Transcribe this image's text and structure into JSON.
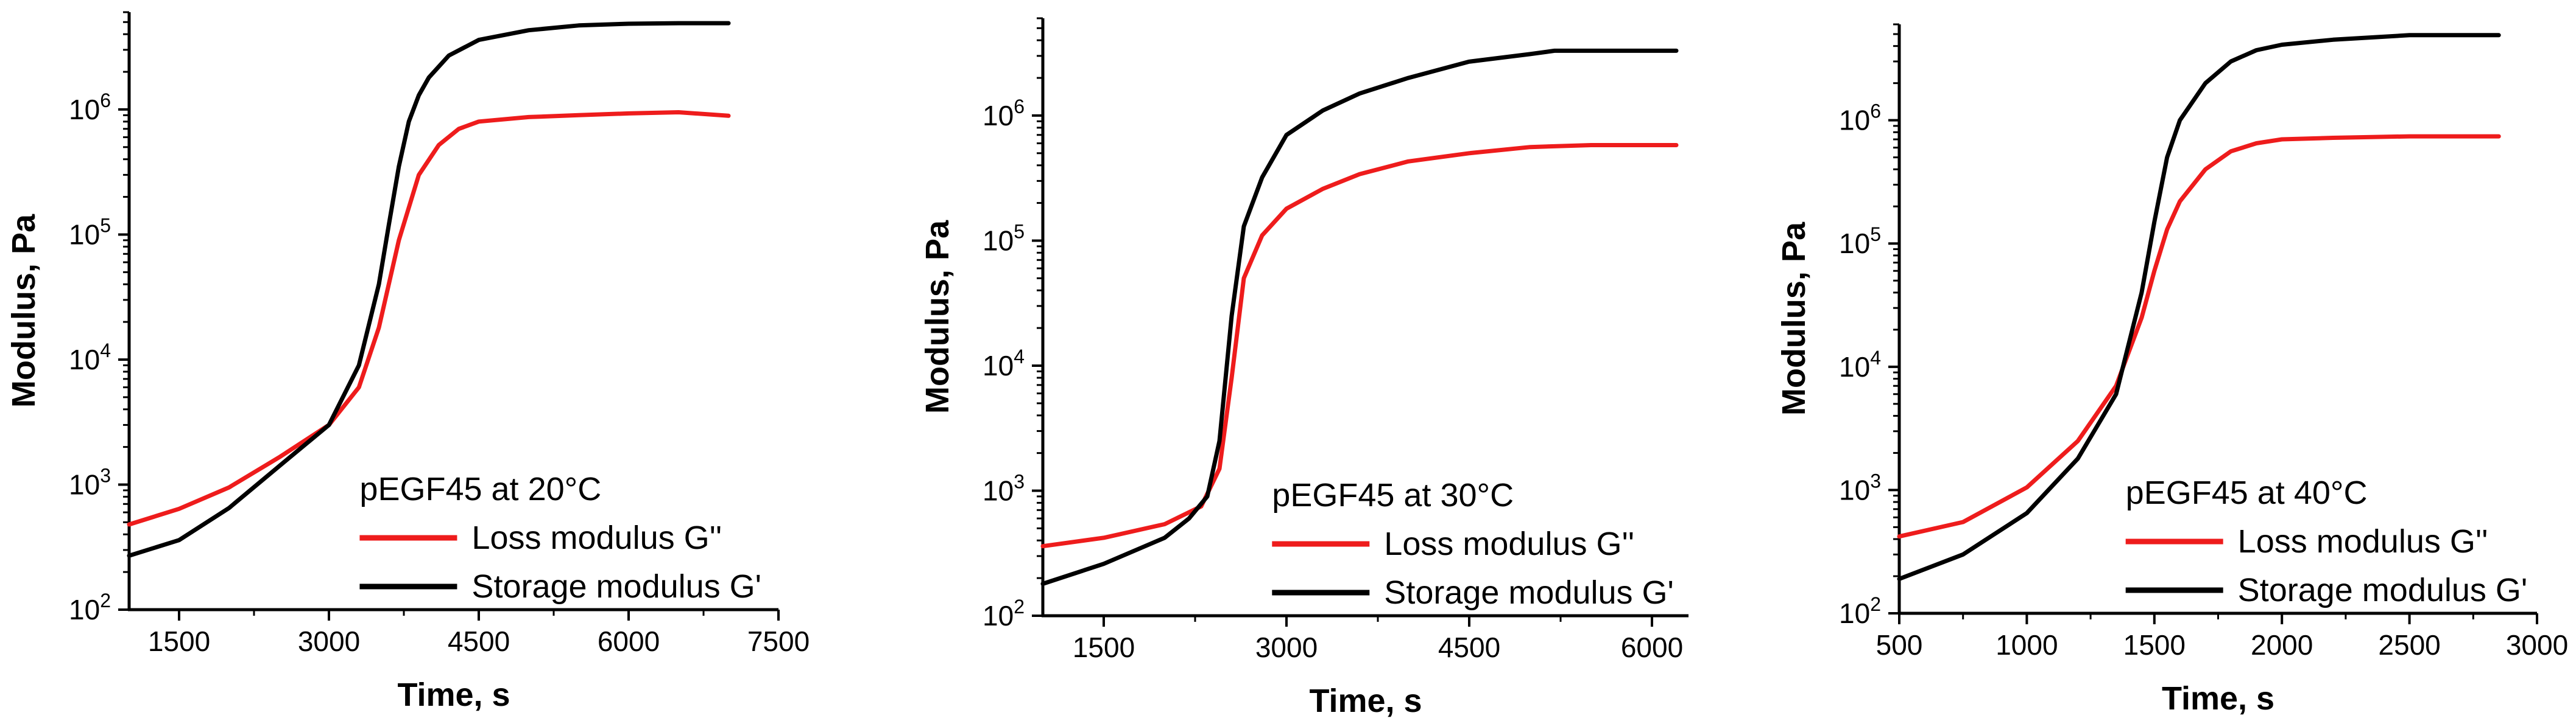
{
  "chart_data": [
    {
      "type": "line",
      "xlabel": "Time, s",
      "ylabel": "Modulus, Pa",
      "xlim": [
        1000,
        7500
      ],
      "ylim": [
        100,
        6000000
      ],
      "yscale": "log",
      "xticks": [
        1500,
        3000,
        4500,
        6000,
        7500
      ],
      "xtick_labels": [
        "1500",
        "3000",
        "4500",
        "6000",
        "7500"
      ],
      "yticks": [
        100,
        1000,
        10000,
        100000,
        1000000
      ],
      "ytick_bases": [
        "10",
        "10",
        "10",
        "10",
        "10"
      ],
      "ytick_exps": [
        "2",
        "3",
        "4",
        "5",
        "6"
      ],
      "legend_title": "pEGF45 at 20°C",
      "legend_placement": "bottom-right",
      "series": [
        {
          "name": "Loss modulus G''",
          "color": "#ee1c1c",
          "x": [
            1000,
            1500,
            2000,
            2500,
            3000,
            3300,
            3500,
            3700,
            3900,
            4100,
            4300,
            4500,
            5000,
            5500,
            6000,
            6500,
            7000
          ],
          "y": [
            480,
            640,
            950,
            1650,
            3000,
            6000,
            18000,
            90000,
            300000,
            520000,
            700000,
            800000,
            870000,
            900000,
            930000,
            950000,
            890000
          ]
        },
        {
          "name": "Storage modulus G'",
          "color": "#000000",
          "x": [
            1000,
            1500,
            2000,
            2500,
            3000,
            3300,
            3500,
            3600,
            3700,
            3800,
            3900,
            4000,
            4200,
            4500,
            5000,
            5500,
            6000,
            6500,
            7000
          ],
          "y": [
            270,
            360,
            650,
            1400,
            3000,
            9000,
            40000,
            120000,
            350000,
            800000,
            1300000,
            1800000,
            2700000,
            3600000,
            4300000,
            4700000,
            4850000,
            4900000,
            4900000
          ]
        }
      ]
    },
    {
      "type": "line",
      "xlabel": "Time, s",
      "ylabel": "Modulus, Pa",
      "xlim": [
        1000,
        6300
      ],
      "ylim": [
        100,
        6000000
      ],
      "yscale": "log",
      "xticks": [
        1500,
        3000,
        4500,
        6000
      ],
      "xtick_labels": [
        "1500",
        "3000",
        "4500",
        "6000"
      ],
      "yticks": [
        100,
        1000,
        10000,
        100000,
        1000000
      ],
      "ytick_bases": [
        "10",
        "10",
        "10",
        "10",
        "10"
      ],
      "ytick_exps": [
        "2",
        "3",
        "4",
        "5",
        "6"
      ],
      "legend_title": "pEGF45 at 30°C",
      "legend_placement": "bottom-right",
      "series": [
        {
          "name": "Loss modulus G''",
          "color": "#ee1c1c",
          "x": [
            1000,
            1500,
            2000,
            2300,
            2450,
            2550,
            2650,
            2800,
            3000,
            3300,
            3600,
            4000,
            4500,
            5000,
            5500,
            6200
          ],
          "y": [
            360,
            420,
            540,
            750,
            1500,
            8000,
            50000,
            110000,
            180000,
            260000,
            340000,
            430000,
            500000,
            560000,
            580000,
            580000
          ]
        },
        {
          "name": "Storage modulus G'",
          "color": "#000000",
          "x": [
            1000,
            1500,
            2000,
            2200,
            2350,
            2450,
            2550,
            2650,
            2800,
            3000,
            3300,
            3600,
            4000,
            4500,
            5000,
            5200,
            6200
          ],
          "y": [
            180,
            260,
            420,
            600,
            900,
            2500,
            25000,
            130000,
            320000,
            700000,
            1100000,
            1500000,
            2000000,
            2700000,
            3100000,
            3300000,
            3300000
          ]
        }
      ]
    },
    {
      "type": "line",
      "xlabel": "Time, s",
      "ylabel": "Modulus, Pa",
      "xlim": [
        500,
        3000
      ],
      "ylim": [
        100,
        6000000
      ],
      "yscale": "log",
      "xticks": [
        500,
        1000,
        1500,
        2000,
        2500,
        3000
      ],
      "xtick_labels": [
        "500",
        "1000",
        "1500",
        "2000",
        "2500",
        "3000"
      ],
      "yticks": [
        100,
        1000,
        10000,
        100000,
        1000000
      ],
      "ytick_bases": [
        "10",
        "10",
        "10",
        "10",
        "10"
      ],
      "ytick_exps": [
        "2",
        "3",
        "4",
        "5",
        "6"
      ],
      "legend_title": "pEGF45 at 40°C",
      "legend_placement": "bottom-right",
      "series": [
        {
          "name": "Loss modulus G''",
          "color": "#ee1c1c",
          "x": [
            500,
            750,
            1000,
            1200,
            1350,
            1450,
            1500,
            1550,
            1600,
            1700,
            1800,
            1900,
            2000,
            2200,
            2500,
            2850
          ],
          "y": [
            420,
            550,
            1050,
            2500,
            7000,
            25000,
            60000,
            130000,
            220000,
            400000,
            560000,
            650000,
            700000,
            720000,
            740000,
            740000
          ]
        },
        {
          "name": "Storage modulus G'",
          "color": "#000000",
          "x": [
            500,
            750,
            1000,
            1200,
            1350,
            1450,
            1500,
            1550,
            1600,
            1700,
            1800,
            1900,
            2000,
            2200,
            2500,
            2850
          ],
          "y": [
            190,
            300,
            650,
            1800,
            6000,
            40000,
            150000,
            500000,
            1000000,
            2000000,
            3000000,
            3700000,
            4100000,
            4500000,
            4900000,
            4900000
          ]
        }
      ]
    }
  ]
}
